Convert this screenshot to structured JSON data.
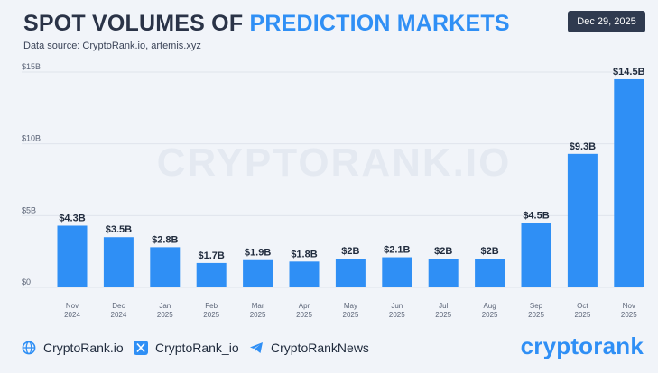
{
  "header": {
    "title_part1": "SPOT VOLUMES OF",
    "title_part2": "PREDICTION MARKETS",
    "subtitle": "Data source: CryptoRank.io, artemis.xyz",
    "date": "Dec 29, 2025"
  },
  "watermark": "CRYPTORANK.IO",
  "footer": {
    "site": "CryptoRank.io",
    "x_handle": "CryptoRank_io",
    "telegram": "CryptoRankNews",
    "logo": "cryptorank"
  },
  "colors": {
    "bar": "#2f8ff5",
    "title_accent": "#2f8ff5",
    "badge_bg": "#2f3a4f"
  },
  "icons": [
    "globe-icon",
    "x-logo-icon",
    "telegram-icon"
  ],
  "chart_data": {
    "type": "bar",
    "title": "SPOT VOLUMES OF PREDICTION MARKETS",
    "categories": [
      "Nov 2024",
      "Dec 2024",
      "Jan 2025",
      "Feb 2025",
      "Mar 2025",
      "Apr 2025",
      "May 2025",
      "Jun 2025",
      "Jul 2025",
      "Aug 2025",
      "Sep 2025",
      "Oct 2025",
      "Nov 2025"
    ],
    "category_lines": [
      [
        "Nov",
        "2024"
      ],
      [
        "Dec",
        "2024"
      ],
      [
        "Jan",
        "2025"
      ],
      [
        "Feb",
        "2025"
      ],
      [
        "Mar",
        "2025"
      ],
      [
        "Apr",
        "2025"
      ],
      [
        "May",
        "2025"
      ],
      [
        "Jun",
        "2025"
      ],
      [
        "Jul",
        "2025"
      ],
      [
        "Aug",
        "2025"
      ],
      [
        "Sep",
        "2025"
      ],
      [
        "Oct",
        "2025"
      ],
      [
        "Nov",
        "2025"
      ]
    ],
    "values": [
      4.3,
      3.5,
      2.8,
      1.7,
      1.9,
      1.8,
      2.0,
      2.1,
      2.0,
      2.0,
      4.5,
      9.3,
      14.5
    ],
    "value_labels": [
      "$4.3B",
      "$3.5B",
      "$2.8B",
      "$1.7B",
      "$1.9B",
      "$1.8B",
      "$2B",
      "$2.1B",
      "$2B",
      "$2B",
      "$4.5B",
      "$9.3B",
      "$14.5B"
    ],
    "yticks": [
      0,
      5,
      10,
      15
    ],
    "ytick_labels": [
      "$0",
      "$5B",
      "$10B",
      "$15B"
    ],
    "ylim": [
      0,
      15
    ],
    "grid": true,
    "xlabel": "",
    "ylabel": ""
  }
}
